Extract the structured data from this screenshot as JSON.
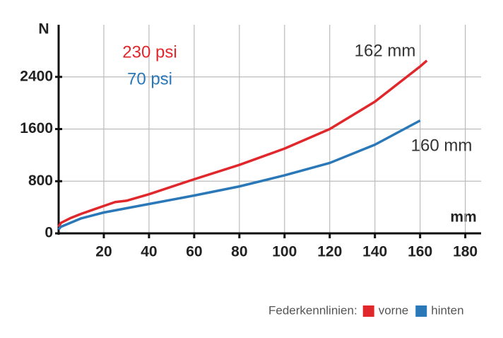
{
  "chart_data": {
    "type": "line",
    "y_label": "N",
    "x_label": "mm",
    "xlim": [
      0,
      187
    ],
    "xticks": [
      20,
      40,
      60,
      80,
      100,
      120,
      140,
      160,
      180
    ],
    "ylim": [
      0,
      3200
    ],
    "yticks": [
      0,
      800,
      1600,
      2400
    ],
    "grid": true,
    "legend_title": "Federkennlinien:",
    "series": [
      {
        "name": "vorne",
        "color": "#e0282c",
        "x": [
          0,
          1,
          5,
          10,
          15,
          20,
          25,
          30,
          40,
          60,
          80,
          100,
          120,
          140,
          160,
          163
        ],
        "values": [
          100,
          160,
          230,
          300,
          360,
          420,
          480,
          500,
          600,
          830,
          1050,
          1300,
          1600,
          2020,
          2560,
          2650
        ]
      },
      {
        "name": "hinten",
        "color": "#2a78b8",
        "x": [
          0,
          1,
          10,
          20,
          40,
          60,
          80,
          100,
          120,
          140,
          160
        ],
        "values": [
          60,
          100,
          230,
          320,
          450,
          580,
          720,
          890,
          1080,
          1360,
          1730
        ]
      }
    ],
    "annotations": [
      "230 psi",
      "70 psi",
      "162 mm",
      "160 mm"
    ]
  }
}
